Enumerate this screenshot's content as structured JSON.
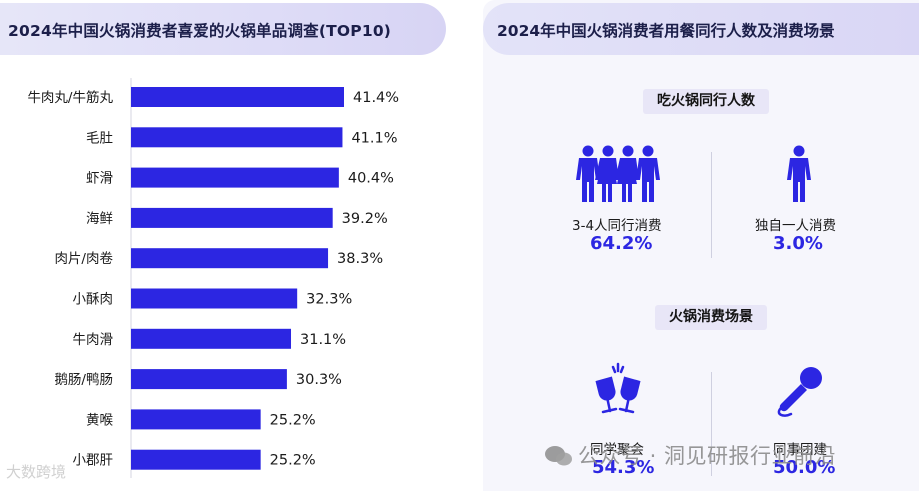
{
  "left": {
    "title": "2024年中国火锅消费者喜爱的火锅单品调查(TOP10)"
  },
  "chart_data": {
    "type": "bar",
    "orientation": "horizontal",
    "title": "2024年中国火锅消费者喜爱的火锅单品调查(TOP10)",
    "categories": [
      "牛肉丸/牛筋丸",
      "毛肚",
      "虾滑",
      "海鲜",
      "肉片/肉卷",
      "小酥肉",
      "牛肉滑",
      "鹅肠/鸭肠",
      "黄喉",
      "小郡肝"
    ],
    "values": [
      41.4,
      41.1,
      40.4,
      39.2,
      38.3,
      32.3,
      31.1,
      30.3,
      25.2,
      25.2
    ],
    "value_labels": [
      "41.4%",
      "41.1%",
      "40.4%",
      "39.2%",
      "38.3%",
      "32.3%",
      "31.1%",
      "30.3%",
      "25.2%",
      "25.2%"
    ],
    "unit": "%",
    "xlim": [
      0,
      41.4
    ],
    "bar_color": "#2c26e2",
    "grid": false,
    "legend": "none"
  },
  "right": {
    "title": "2024年中国火锅消费者用餐同行人数及消费场景",
    "companions": {
      "heading": "吃火锅同行人数",
      "items": [
        {
          "label": "3-4人同行消费",
          "value": "64.2%",
          "icon": "group-people-icon"
        },
        {
          "label": "独自一人消费",
          "value": "3.0%",
          "icon": "single-person-icon"
        }
      ]
    },
    "scenes": {
      "heading": "火锅消费场景",
      "items": [
        {
          "label": "同学聚会",
          "value": "54.3%",
          "icon": "wine-cheers-icon"
        },
        {
          "label": "同事团建",
          "value": "50.0%",
          "icon": "microphone-icon"
        }
      ]
    }
  },
  "watermarks": {
    "left": "大数跨境",
    "right": "公众号 · 洞见研报行业前沿"
  },
  "colors": {
    "accent": "#2c26e2",
    "title_text": "#1c1f4a",
    "header_bg": "#e0def7"
  }
}
